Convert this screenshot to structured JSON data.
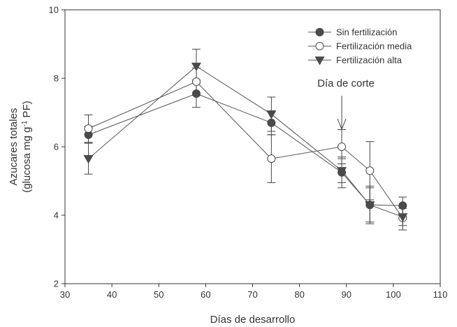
{
  "chart_data": {
    "type": "line",
    "xlabel": "Días de desarrollo",
    "ylabel_line1": "Azucares totales",
    "ylabel_line2_pre": "(glucosa mg g",
    "ylabel_sup": "-1",
    "ylabel_line2_post": " PF)",
    "xlim": [
      30,
      110
    ],
    "ylim": [
      2,
      10
    ],
    "xticks": [
      30,
      40,
      50,
      60,
      70,
      80,
      90,
      100,
      110
    ],
    "yticks": [
      2,
      4,
      6,
      8,
      10
    ],
    "legend_position": "top-right",
    "series": [
      {
        "name": "Sin fertilización",
        "marker": "circle-filled",
        "color": "#4a4a4a",
        "x": [
          35,
          58,
          74,
          89,
          95,
          102
        ],
        "y": [
          6.35,
          7.55,
          6.7,
          5.25,
          4.3,
          4.28
        ],
        "err": [
          0.25,
          0.4,
          0.35,
          0.45,
          0.5,
          0.25
        ]
      },
      {
        "name": "Fertilización media",
        "marker": "circle-open",
        "color": "#4a4a4a",
        "x": [
          35,
          58,
          74,
          89,
          95,
          102
        ],
        "y": [
          6.53,
          7.9,
          5.65,
          6.0,
          5.3,
          3.92
        ],
        "err": [
          0.4,
          0.4,
          0.7,
          0.5,
          0.85,
          0.35
        ]
      },
      {
        "name": "Fertilización alta",
        "marker": "triangle-down-filled",
        "color": "#4a4a4a",
        "x": [
          35,
          58,
          74,
          89,
          95,
          102
        ],
        "y": [
          5.65,
          8.35,
          6.95,
          5.3,
          4.3,
          3.95
        ],
        "err": [
          0.45,
          0.5,
          0.5,
          0.35,
          0.55,
          0.25
        ]
      }
    ],
    "annotations": [
      {
        "text": "Día de corte",
        "x": 89,
        "arrow": true
      }
    ]
  }
}
